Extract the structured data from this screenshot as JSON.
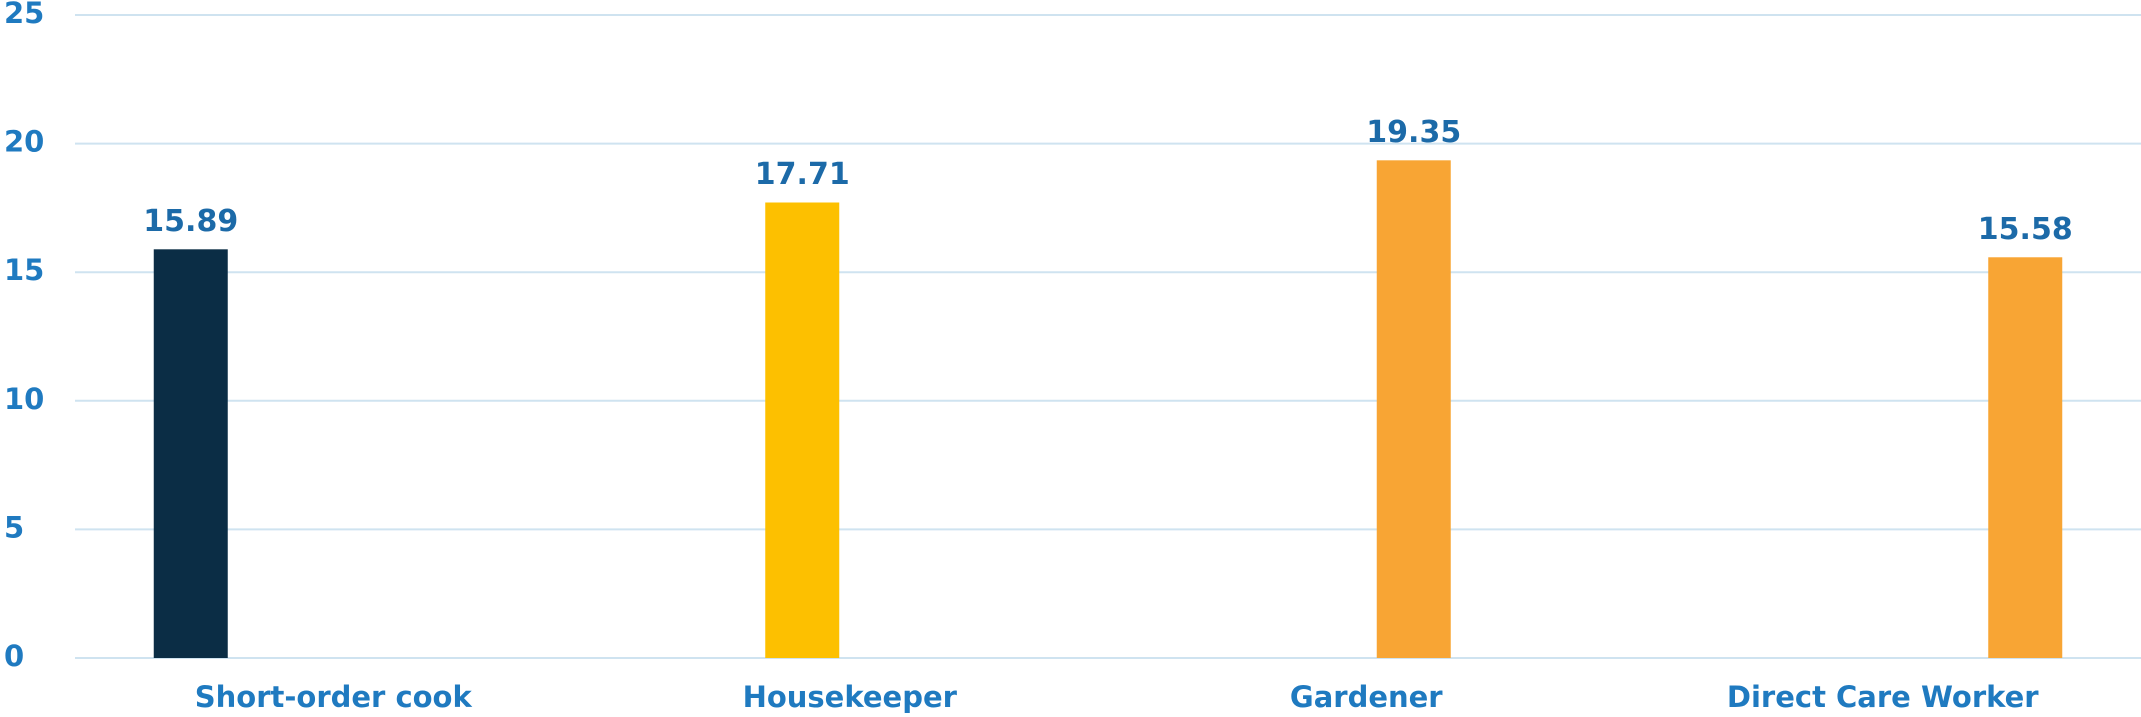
{
  "chart_data": {
    "type": "bar",
    "categories": [
      "Short-order cook",
      "Housekeeper",
      "Gardener",
      "Direct Care Worker"
    ],
    "values": [
      15.89,
      17.71,
      19.35,
      15.58
    ],
    "colors": [
      "#0b2d45",
      "#fdc000",
      "#f8a534",
      "#f8a534"
    ],
    "ylim": [
      0,
      25
    ],
    "yticks": [
      0,
      5,
      10,
      15,
      20,
      25
    ],
    "grid": true
  }
}
